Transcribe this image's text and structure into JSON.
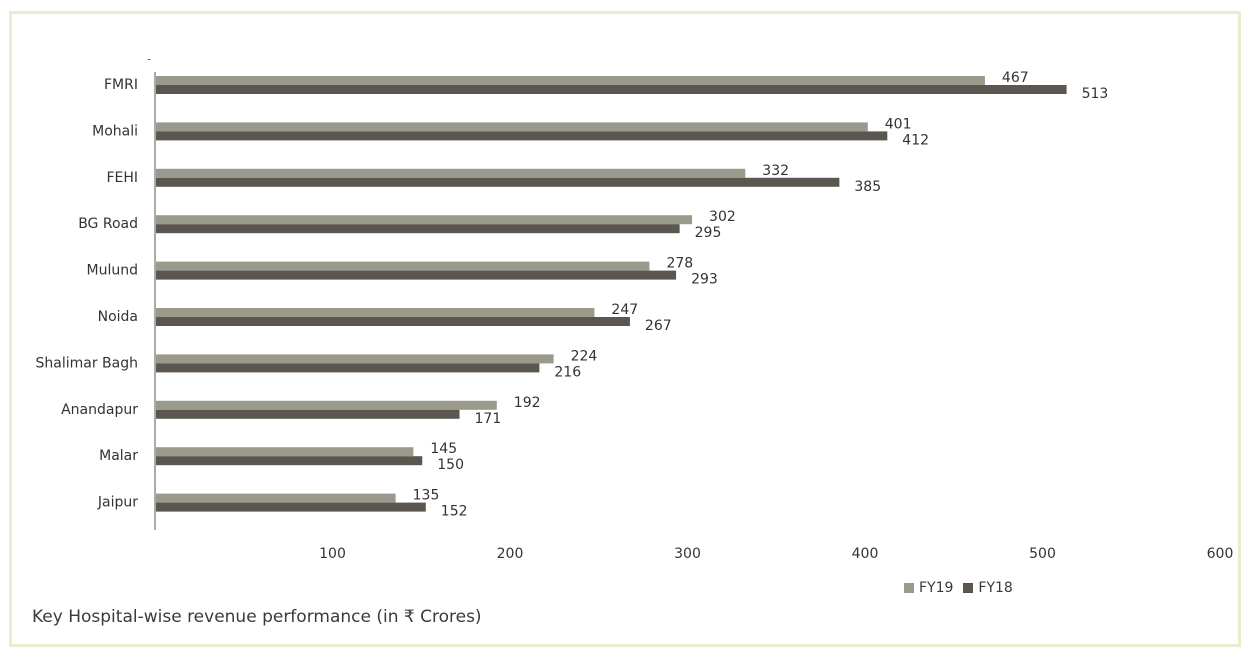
{
  "chart_data": {
    "type": "bar",
    "orientation": "horizontal",
    "title": "Key Hospital-wise revenue performance (in ₹ Crores)",
    "categories": [
      "FMRI",
      "Mohali",
      "FEHI",
      "BG Road",
      "Mulund",
      "Noida",
      "Shalimar Bagh",
      "Anandapur",
      "Malar",
      "Jaipur"
    ],
    "series": [
      {
        "name": "FY19",
        "color": "#9a9a8c",
        "values": [
          467,
          401,
          332,
          302,
          278,
          247,
          224,
          192,
          145,
          135
        ]
      },
      {
        "name": "FY18",
        "color": "#5b5650",
        "values": [
          513,
          412,
          385,
          295,
          293,
          267,
          216,
          171,
          150,
          152
        ]
      }
    ],
    "xlim": [
      0,
      600
    ],
    "xticks": [
      100,
      200,
      300,
      400,
      500,
      600
    ],
    "legend_position": "bottom-right",
    "grid": false
  },
  "top_marker": "-"
}
